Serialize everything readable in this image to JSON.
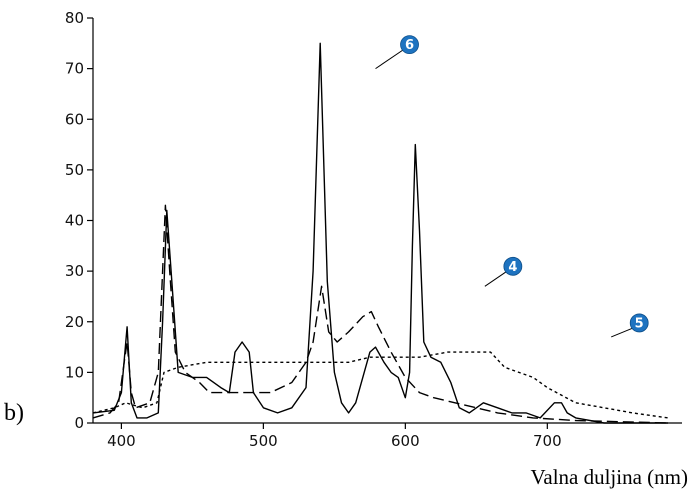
{
  "panel_label": "b)",
  "colors": {
    "badge": "#1e73c0",
    "line": "#000000"
  },
  "chart_data": {
    "type": "line",
    "title": "",
    "xlabel": "Valna duljina (nm)",
    "ylabel": "",
    "xlim": [
      380,
      785
    ],
    "ylim": [
      0,
      80
    ],
    "x_ticks": [
      400,
      500,
      600,
      700
    ],
    "y_ticks": [
      0,
      10,
      20,
      30,
      40,
      50,
      60,
      70,
      80
    ],
    "grid": false,
    "series": [
      {
        "name": "6",
        "style": "solid",
        "label_at": [
          579,
          70
        ],
        "points": [
          [
            380,
            2
          ],
          [
            395,
            2.5
          ],
          [
            400,
            6
          ],
          [
            404,
            19
          ],
          [
            407,
            4
          ],
          [
            411,
            1
          ],
          [
            418,
            1
          ],
          [
            426,
            2
          ],
          [
            429,
            20
          ],
          [
            432,
            42
          ],
          [
            435,
            30
          ],
          [
            440,
            10
          ],
          [
            450,
            9
          ],
          [
            460,
            9
          ],
          [
            470,
            7
          ],
          [
            476,
            6
          ],
          [
            480,
            14
          ],
          [
            485,
            16
          ],
          [
            490,
            14
          ],
          [
            493,
            6
          ],
          [
            500,
            3
          ],
          [
            510,
            2
          ],
          [
            520,
            3
          ],
          [
            530,
            7
          ],
          [
            535,
            30
          ],
          [
            540,
            75
          ],
          [
            545,
            28
          ],
          [
            550,
            10
          ],
          [
            555,
            4
          ],
          [
            560,
            2
          ],
          [
            565,
            4
          ],
          [
            570,
            9
          ],
          [
            575,
            14
          ],
          [
            579,
            15
          ],
          [
            585,
            12
          ],
          [
            590,
            10
          ],
          [
            595,
            9
          ],
          [
            600,
            5
          ],
          [
            603,
            10
          ],
          [
            605,
            35
          ],
          [
            607,
            55
          ],
          [
            610,
            38
          ],
          [
            613,
            16
          ],
          [
            618,
            13
          ],
          [
            625,
            12
          ],
          [
            632,
            8
          ],
          [
            638,
            3
          ],
          [
            645,
            2
          ],
          [
            655,
            4
          ],
          [
            665,
            3
          ],
          [
            675,
            2
          ],
          [
            685,
            2
          ],
          [
            695,
            1
          ],
          [
            705,
            4
          ],
          [
            710,
            4
          ],
          [
            714,
            2
          ],
          [
            720,
            1
          ],
          [
            740,
            0
          ],
          [
            785,
            0
          ]
        ]
      },
      {
        "name": "4",
        "style": "long-dash",
        "label_at": [
          656,
          27
        ],
        "points": [
          [
            380,
            1
          ],
          [
            392,
            2
          ],
          [
            398,
            4
          ],
          [
            402,
            12
          ],
          [
            404,
            16
          ],
          [
            407,
            6
          ],
          [
            410,
            3
          ],
          [
            420,
            4
          ],
          [
            426,
            10
          ],
          [
            431,
            43
          ],
          [
            434,
            30
          ],
          [
            438,
            14
          ],
          [
            445,
            10
          ],
          [
            455,
            8
          ],
          [
            462,
            6
          ],
          [
            475,
            6
          ],
          [
            490,
            6
          ],
          [
            505,
            6
          ],
          [
            520,
            8
          ],
          [
            530,
            12
          ],
          [
            535,
            16
          ],
          [
            541,
            27
          ],
          [
            546,
            18
          ],
          [
            552,
            16
          ],
          [
            560,
            18
          ],
          [
            570,
            21
          ],
          [
            576,
            22
          ],
          [
            581,
            19
          ],
          [
            590,
            14
          ],
          [
            600,
            9
          ],
          [
            610,
            6
          ],
          [
            620,
            5
          ],
          [
            635,
            4
          ],
          [
            650,
            3
          ],
          [
            665,
            2
          ],
          [
            690,
            1
          ],
          [
            720,
            0.5
          ],
          [
            785,
            0
          ]
        ]
      },
      {
        "name": "5",
        "style": "short-dash",
        "label_at": [
          745,
          17
        ],
        "points": [
          [
            380,
            2
          ],
          [
            395,
            3
          ],
          [
            403,
            4
          ],
          [
            415,
            3
          ],
          [
            425,
            4
          ],
          [
            430,
            10
          ],
          [
            440,
            11
          ],
          [
            460,
            12
          ],
          [
            480,
            12
          ],
          [
            500,
            12
          ],
          [
            520,
            12
          ],
          [
            540,
            12
          ],
          [
            560,
            12
          ],
          [
            575,
            13
          ],
          [
            590,
            13
          ],
          [
            610,
            13
          ],
          [
            630,
            14
          ],
          [
            650,
            14
          ],
          [
            660,
            14
          ],
          [
            670,
            11
          ],
          [
            690,
            9
          ],
          [
            700,
            7
          ],
          [
            720,
            4
          ],
          [
            740,
            3
          ],
          [
            760,
            2
          ],
          [
            785,
            1
          ]
        ]
      }
    ]
  }
}
